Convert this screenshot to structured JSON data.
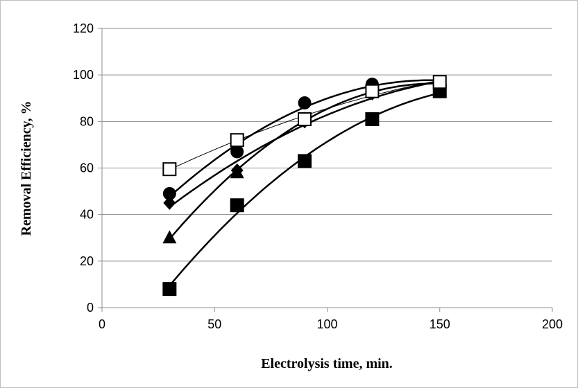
{
  "chart_data": {
    "type": "scatter",
    "xlabel": "Electrolysis time, min.",
    "ylabel": "Removal Efficiency, %",
    "xlim": [
      0,
      200
    ],
    "ylim": [
      0,
      120
    ],
    "xticks": [
      0,
      50,
      100,
      150,
      200
    ],
    "yticks": [
      0,
      20,
      40,
      60,
      80,
      100,
      120
    ],
    "grid": "horizontal",
    "legend": "none",
    "series": [
      {
        "marker": "square-open",
        "trendline": "thin",
        "x": [
          30,
          60,
          90,
          120,
          150
        ],
        "y": [
          59.5,
          72,
          81,
          93,
          97
        ]
      },
      {
        "marker": "circle",
        "trendline": "polynomial",
        "x": [
          30,
          60,
          90,
          120,
          150
        ],
        "y": [
          49,
          67,
          88,
          96,
          97
        ]
      },
      {
        "marker": "diamond",
        "trendline": "polynomial",
        "x": [
          30,
          60,
          90,
          120,
          150
        ],
        "y": [
          45,
          59,
          80,
          92,
          96
        ]
      },
      {
        "marker": "triangle",
        "trendline": "polynomial",
        "x": [
          30,
          60,
          90,
          120,
          150
        ],
        "y": [
          30,
          58,
          81,
          93,
          96
        ]
      },
      {
        "marker": "square",
        "trendline": "polynomial",
        "x": [
          30,
          60,
          90,
          120,
          150
        ],
        "y": [
          8,
          44,
          63,
          81,
          93
        ]
      }
    ]
  }
}
